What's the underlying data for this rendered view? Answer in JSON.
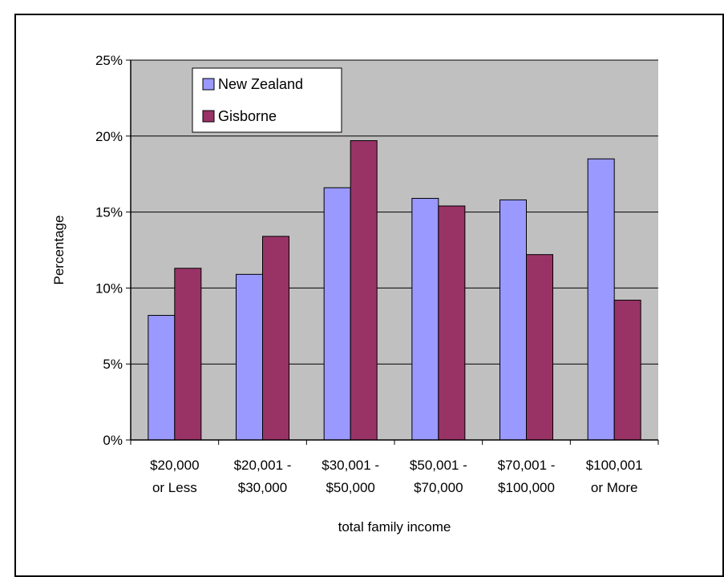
{
  "chart_data": {
    "type": "bar",
    "title": "",
    "xlabel": "total family income",
    "ylabel": "Percentage",
    "categories": [
      [
        "$20,000",
        "or Less"
      ],
      [
        "$20,001 -",
        "$30,000"
      ],
      [
        "$30,001 -",
        "$50,000"
      ],
      [
        "$50,001 -",
        "$70,000"
      ],
      [
        "$70,001 -",
        "$100,000"
      ],
      [
        "$100,001",
        "or More"
      ]
    ],
    "series": [
      {
        "name": "New Zealand",
        "color": "#9999ff",
        "values": [
          8.2,
          10.9,
          16.6,
          15.9,
          15.8,
          18.5
        ]
      },
      {
        "name": "Gisborne",
        "color": "#993366",
        "values": [
          11.3,
          13.4,
          19.7,
          15.4,
          12.2,
          9.2
        ]
      }
    ],
    "ylim": [
      0,
      25
    ],
    "yticks": [
      0,
      5,
      10,
      15,
      20,
      25
    ],
    "ytick_labels": [
      "0%",
      "5%",
      "10%",
      "15%",
      "20%",
      "25%"
    ],
    "grid": true,
    "legend_position": "top-left",
    "plot_background": "#c0c0c0"
  }
}
